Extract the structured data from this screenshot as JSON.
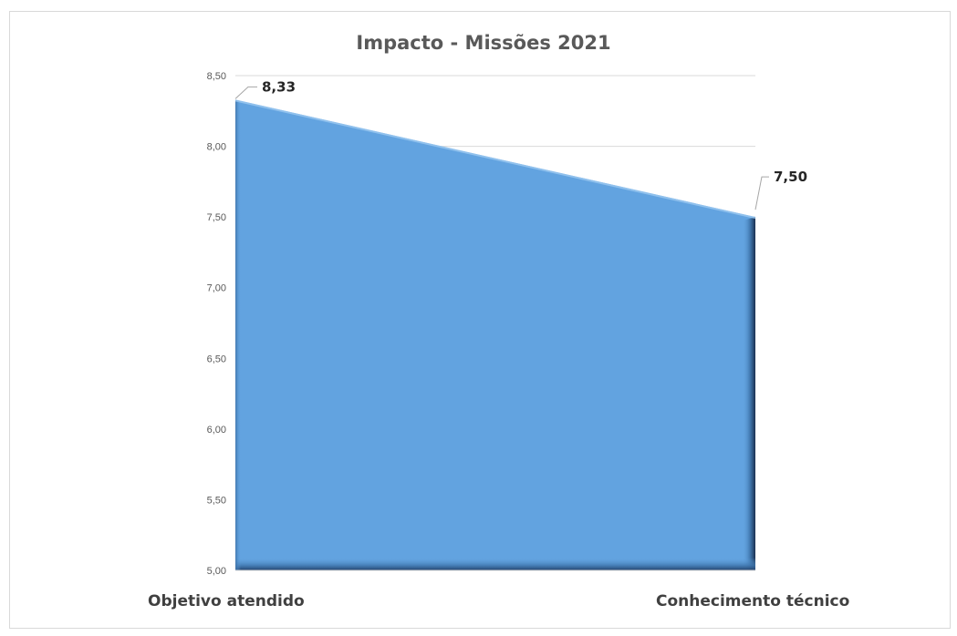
{
  "chart_data": {
    "type": "area",
    "title": "Impacto - Missões 2021",
    "categories": [
      "Objetivo atendido",
      "Conhecimento técnico"
    ],
    "series": [
      {
        "values": [
          8.33,
          7.5
        ]
      }
    ],
    "data_labels": [
      "8,33",
      "7,50"
    ],
    "ylim": [
      5.0,
      8.5
    ],
    "yticks": [
      5.0,
      5.5,
      6.0,
      6.5,
      7.0,
      7.5,
      8.0,
      8.5
    ],
    "ytick_labels": [
      "5,00",
      "5,50",
      "6,00",
      "6,50",
      "7,00",
      "7,50",
      "8,00",
      "8,50"
    ],
    "grid": true,
    "legend": "none",
    "colors": {
      "fill": "#62a3e0",
      "edge": "#1f3a60",
      "grid": "#d9d9d9",
      "axis_text": "#595959"
    }
  }
}
